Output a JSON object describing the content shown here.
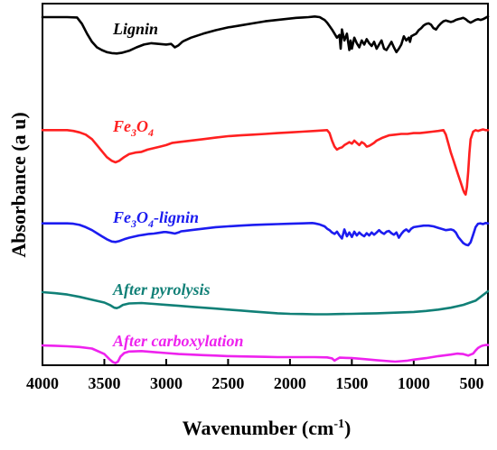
{
  "chart_data": {
    "type": "line",
    "xlabel_main": "Wavenumber (cm",
    "xlabel_sup": "-1",
    "xlabel_tail": ")",
    "ylabel": "Absorbance (a u)",
    "xlim": [
      4000,
      400
    ],
    "x_reversed": true,
    "y_ticks_visible": false,
    "xticks": [
      4000,
      3500,
      3000,
      2500,
      2000,
      1500,
      1000,
      500
    ],
    "colors": {
      "lignin": "#000000",
      "fe3o4": "#ff2020",
      "fe3o4_lignin": "#1c1cf0",
      "after_pyrolysis": "#118077",
      "after_carboxylation": "#ee22ee"
    },
    "series": [
      {
        "name": "Lignin",
        "color": "#000000",
        "x": [
          4000,
          3900,
          3800,
          3720,
          3680,
          3640,
          3600,
          3560,
          3520,
          3480,
          3440,
          3400,
          3360,
          3300,
          3240,
          3180,
          3120,
          3060,
          3000,
          2960,
          2930,
          2900,
          2870,
          2850,
          2800,
          2700,
          2600,
          2500,
          2400,
          2300,
          2200,
          2100,
          2000,
          1950,
          1900,
          1850,
          1800,
          1760,
          1740,
          1720,
          1700,
          1680,
          1660,
          1640,
          1620,
          1600,
          1590,
          1580,
          1560,
          1540,
          1520,
          1510,
          1500,
          1480,
          1460,
          1440,
          1420,
          1400,
          1380,
          1360,
          1340,
          1320,
          1300,
          1280,
          1260,
          1240,
          1220,
          1200,
          1180,
          1160,
          1140,
          1120,
          1100,
          1080,
          1060,
          1040,
          1030,
          1020,
          1000,
          980,
          960,
          940,
          920,
          900,
          880,
          860,
          840,
          820,
          800,
          780,
          760,
          740,
          720,
          700,
          680,
          660,
          640,
          620,
          600,
          580,
          560,
          540,
          520,
          500,
          480,
          460,
          440,
          420,
          400
        ],
        "y": [
          0.96,
          0.96,
          0.96,
          0.955,
          0.86,
          0.72,
          0.6,
          0.52,
          0.48,
          0.45,
          0.435,
          0.43,
          0.44,
          0.47,
          0.52,
          0.56,
          0.58,
          0.57,
          0.56,
          0.57,
          0.52,
          0.55,
          0.6,
          0.62,
          0.66,
          0.72,
          0.77,
          0.81,
          0.84,
          0.87,
          0.9,
          0.92,
          0.94,
          0.95,
          0.955,
          0.96,
          0.97,
          0.96,
          0.94,
          0.92,
          0.88,
          0.83,
          0.78,
          0.72,
          0.66,
          0.7,
          0.5,
          0.78,
          0.62,
          0.72,
          0.48,
          0.62,
          0.5,
          0.66,
          0.58,
          0.52,
          0.62,
          0.56,
          0.64,
          0.58,
          0.54,
          0.6,
          0.5,
          0.56,
          0.62,
          0.5,
          0.48,
          0.54,
          0.6,
          0.52,
          0.45,
          0.5,
          0.56,
          0.68,
          0.62,
          0.66,
          0.6,
          0.68,
          0.7,
          0.72,
          0.77,
          0.8,
          0.84,
          0.86,
          0.87,
          0.85,
          0.8,
          0.78,
          0.83,
          0.87,
          0.9,
          0.91,
          0.9,
          0.89,
          0.9,
          0.92,
          0.93,
          0.94,
          0.95,
          0.93,
          0.9,
          0.88,
          0.9,
          0.92,
          0.93,
          0.92,
          0.93,
          0.95,
          0.97
        ]
      },
      {
        "name": "Fe3O4",
        "color": "#ff2020",
        "x": [
          4000,
          3900,
          3800,
          3750,
          3700,
          3650,
          3600,
          3560,
          3520,
          3480,
          3440,
          3410,
          3380,
          3340,
          3300,
          3250,
          3200,
          3150,
          3100,
          3050,
          3000,
          2950,
          2900,
          2800,
          2700,
          2600,
          2500,
          2400,
          2300,
          2200,
          2100,
          2000,
          1900,
          1800,
          1700,
          1680,
          1660,
          1640,
          1620,
          1600,
          1580,
          1560,
          1540,
          1520,
          1500,
          1480,
          1460,
          1440,
          1420,
          1400,
          1380,
          1360,
          1340,
          1320,
          1300,
          1250,
          1200,
          1150,
          1100,
          1050,
          1000,
          950,
          900,
          850,
          800,
          760,
          740,
          720,
          700,
          680,
          660,
          640,
          620,
          600,
          590,
          580,
          570,
          560,
          550,
          540,
          520,
          500,
          480,
          460,
          440,
          420,
          400
        ],
        "y": [
          0.96,
          0.96,
          0.96,
          0.95,
          0.93,
          0.9,
          0.84,
          0.76,
          0.68,
          0.6,
          0.55,
          0.53,
          0.55,
          0.6,
          0.64,
          0.66,
          0.67,
          0.7,
          0.72,
          0.74,
          0.76,
          0.79,
          0.8,
          0.82,
          0.84,
          0.86,
          0.88,
          0.89,
          0.9,
          0.91,
          0.92,
          0.93,
          0.94,
          0.95,
          0.96,
          0.92,
          0.82,
          0.74,
          0.7,
          0.72,
          0.73,
          0.76,
          0.78,
          0.8,
          0.78,
          0.82,
          0.79,
          0.76,
          0.8,
          0.78,
          0.74,
          0.75,
          0.77,
          0.79,
          0.82,
          0.86,
          0.89,
          0.9,
          0.91,
          0.91,
          0.92,
          0.92,
          0.93,
          0.94,
          0.95,
          0.96,
          0.9,
          0.78,
          0.66,
          0.56,
          0.46,
          0.36,
          0.26,
          0.16,
          0.12,
          0.1,
          0.2,
          0.4,
          0.66,
          0.84,
          0.94,
          0.96,
          0.95,
          0.96,
          0.97,
          0.96,
          0.96
        ]
      },
      {
        "name": "Fe3O4-lignin",
        "color": "#1c1cf0",
        "x": [
          4000,
          3900,
          3800,
          3750,
          3700,
          3650,
          3600,
          3560,
          3520,
          3480,
          3440,
          3410,
          3380,
          3340,
          3300,
          3260,
          3220,
          3180,
          3140,
          3100,
          3060,
          3020,
          3000,
          2960,
          2930,
          2900,
          2880,
          2850,
          2800,
          2700,
          2600,
          2500,
          2400,
          2300,
          2200,
          2100,
          2000,
          1900,
          1820,
          1800,
          1760,
          1720,
          1700,
          1680,
          1660,
          1640,
          1620,
          1600,
          1580,
          1570,
          1560,
          1540,
          1520,
          1510,
          1500,
          1480,
          1460,
          1440,
          1420,
          1400,
          1380,
          1360,
          1340,
          1320,
          1300,
          1280,
          1260,
          1240,
          1220,
          1200,
          1180,
          1160,
          1140,
          1120,
          1100,
          1080,
          1060,
          1040,
          1020,
          1000,
          960,
          920,
          880,
          840,
          800,
          760,
          740,
          720,
          700,
          680,
          660,
          640,
          620,
          600,
          580,
          560,
          540,
          520,
          500,
          480,
          460,
          440,
          420,
          400
        ],
        "y": [
          0.96,
          0.96,
          0.96,
          0.95,
          0.92,
          0.86,
          0.78,
          0.7,
          0.62,
          0.54,
          0.48,
          0.47,
          0.49,
          0.54,
          0.58,
          0.61,
          0.64,
          0.66,
          0.68,
          0.69,
          0.71,
          0.73,
          0.73,
          0.71,
          0.69,
          0.72,
          0.75,
          0.76,
          0.78,
          0.82,
          0.86,
          0.88,
          0.9,
          0.92,
          0.93,
          0.94,
          0.95,
          0.96,
          0.97,
          0.96,
          0.93,
          0.88,
          0.82,
          0.78,
          0.72,
          0.68,
          0.74,
          0.64,
          0.56,
          0.68,
          0.8,
          0.62,
          0.72,
          0.66,
          0.6,
          0.74,
          0.64,
          0.72,
          0.66,
          0.62,
          0.7,
          0.64,
          0.72,
          0.66,
          0.72,
          0.78,
          0.72,
          0.68,
          0.74,
          0.76,
          0.7,
          0.66,
          0.72,
          0.58,
          0.68,
          0.76,
          0.8,
          0.74,
          0.82,
          0.86,
          0.88,
          0.9,
          0.9,
          0.88,
          0.84,
          0.8,
          0.78,
          0.79,
          0.8,
          0.78,
          0.72,
          0.6,
          0.52,
          0.44,
          0.4,
          0.38,
          0.46,
          0.66,
          0.86,
          0.95,
          0.96,
          0.94,
          0.97,
          0.96
        ]
      },
      {
        "name": "After pyrolysis",
        "color": "#118077",
        "x": [
          4000,
          3900,
          3800,
          3700,
          3600,
          3500,
          3450,
          3420,
          3400,
          3380,
          3350,
          3300,
          3200,
          3100,
          3000,
          2900,
          2800,
          2700,
          2600,
          2500,
          2400,
          2300,
          2200,
          2100,
          2000,
          1900,
          1800,
          1700,
          1600,
          1500,
          1400,
          1300,
          1200,
          1100,
          1000,
          900,
          800,
          700,
          600,
          500,
          450,
          400
        ],
        "y": [
          0.96,
          0.92,
          0.86,
          0.76,
          0.64,
          0.52,
          0.4,
          0.3,
          0.28,
          0.32,
          0.42,
          0.48,
          0.5,
          0.46,
          0.42,
          0.38,
          0.34,
          0.3,
          0.26,
          0.22,
          0.18,
          0.14,
          0.1,
          0.06,
          0.04,
          0.03,
          0.02,
          0.02,
          0.03,
          0.04,
          0.05,
          0.06,
          0.08,
          0.1,
          0.12,
          0.16,
          0.22,
          0.3,
          0.42,
          0.6,
          0.8,
          1.0
        ]
      },
      {
        "name": "After carboxylation",
        "color": "#ee22ee",
        "x": [
          4000,
          3900,
          3800,
          3700,
          3600,
          3500,
          3460,
          3430,
          3410,
          3390,
          3370,
          3340,
          3300,
          3200,
          3100,
          3000,
          2900,
          2800,
          2700,
          2600,
          2500,
          2400,
          2300,
          2200,
          2100,
          2000,
          1900,
          1800,
          1700,
          1660,
          1640,
          1620,
          1600,
          1500,
          1400,
          1300,
          1200,
          1150,
          1100,
          1050,
          1000,
          900,
          800,
          700,
          650,
          600,
          560,
          520,
          500,
          480,
          460,
          440,
          420,
          400
        ],
        "y": [
          0.96,
          0.95,
          0.93,
          0.9,
          0.84,
          0.62,
          0.42,
          0.3,
          0.26,
          0.32,
          0.52,
          0.66,
          0.72,
          0.74,
          0.7,
          0.66,
          0.62,
          0.6,
          0.58,
          0.56,
          0.54,
          0.53,
          0.52,
          0.51,
          0.5,
          0.5,
          0.5,
          0.5,
          0.49,
          0.45,
          0.36,
          0.42,
          0.48,
          0.46,
          0.42,
          0.38,
          0.34,
          0.32,
          0.34,
          0.36,
          0.4,
          0.46,
          0.54,
          0.6,
          0.64,
          0.62,
          0.56,
          0.64,
          0.76,
          0.86,
          0.92,
          0.96,
          0.98,
          0.98
        ]
      }
    ],
    "labels": [
      {
        "series": "Lignin",
        "text": "Lignin",
        "kind": "plain"
      },
      {
        "series": "Fe3O4",
        "kind": "formula",
        "parts": [
          "Fe",
          "3",
          "O",
          "4"
        ]
      },
      {
        "series": "Fe3O4-lignin",
        "kind": "formula",
        "parts": [
          "Fe",
          "3",
          "O",
          "4",
          "-lignin"
        ]
      },
      {
        "series": "After pyrolysis",
        "text": "After pyrolysis",
        "kind": "plain"
      },
      {
        "series": "After carboxylation",
        "text": "After carboxylation",
        "kind": "plain"
      }
    ]
  }
}
